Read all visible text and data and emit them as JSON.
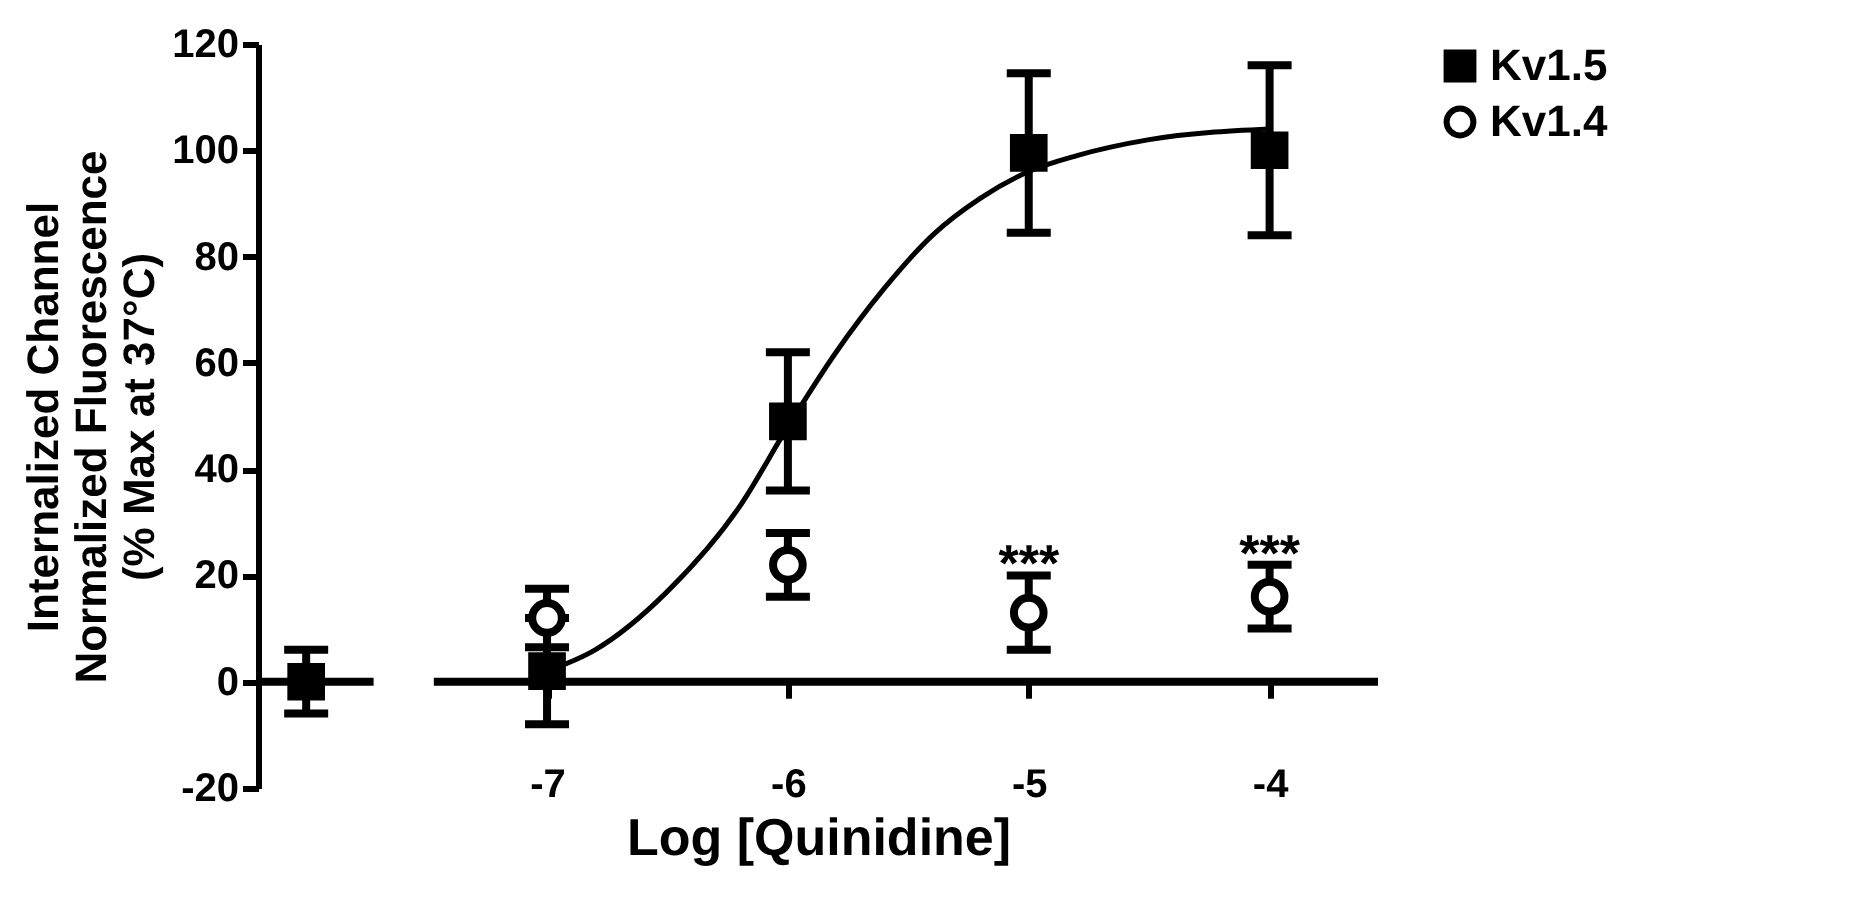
{
  "chart_data": {
    "type": "scatter",
    "ylabel": "Internalized Channel\nNormalized Fluorescence\n(% Max at 37°C)",
    "xlabel": "Log [Quinidine]",
    "xlim": [
      -8.2,
      -3.55
    ],
    "xticks": [
      -7,
      -6,
      -5,
      -4
    ],
    "ylim": [
      -20,
      120
    ],
    "yticks": [
      -20,
      0,
      20,
      40,
      60,
      80,
      100,
      120
    ],
    "series": [
      {
        "name": "Kv1.5",
        "color": "#000000",
        "marker": "square",
        "x": [
          -8,
          -7,
          -6,
          -5,
          -4
        ],
        "values": [
          0,
          2,
          49,
          99.5,
          100
        ],
        "errors": [
          6,
          10,
          13,
          15,
          16
        ]
      },
      {
        "name": "Kv1.4",
        "color": "#000000",
        "marker": "circle",
        "x": [
          -7,
          -6,
          -5,
          -4
        ],
        "values": [
          12,
          22,
          13,
          16
        ],
        "errors": [
          5.5,
          6,
          7,
          6
        ]
      },
      {
        "type": "line",
        "color": "#000000",
        "x": [
          -7,
          -6.8,
          -6.5,
          -6.2,
          -6,
          -5.8,
          -5.6,
          -5.4,
          -5.2,
          -5,
          -4.8,
          -4.5,
          -4
        ],
        "values": [
          2,
          6,
          17,
          33,
          48,
          62,
          74,
          84,
          91,
          96,
          99,
          102,
          104
        ]
      }
    ],
    "annotations": [
      {
        "text": "***",
        "x": -5,
        "y": 20
      },
      {
        "text": "***",
        "x": -4,
        "y": 22
      }
    ],
    "legend": "top right",
    "grid": false
  }
}
